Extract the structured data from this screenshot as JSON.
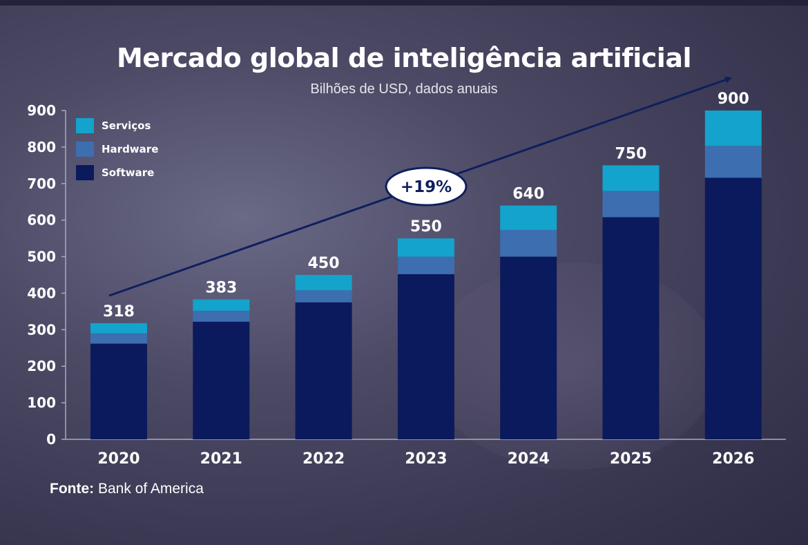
{
  "colors": {
    "services": "#13a3cc",
    "hardware": "#3d6eb0",
    "software": "#0b1a5c",
    "arrow": "#0f1f5e",
    "badge_bg": "#ffffff",
    "badge_text": "#0f1f5e"
  },
  "chart_data": {
    "type": "bar",
    "stacked": true,
    "title": "Mercado global de inteligência artificial",
    "subtitle": "Bilhões de USD, dados anuais",
    "categories": [
      "2020",
      "2021",
      "2022",
      "2023",
      "2024",
      "2025",
      "2026"
    ],
    "series": [
      {
        "name": "Software",
        "values": [
          262,
          322,
          375,
          452,
          500,
          608,
          716
        ]
      },
      {
        "name": "Hardware",
        "values": [
          28,
          30,
          33,
          48,
          73,
          72,
          87
        ]
      },
      {
        "name": "Serviços",
        "values": [
          28,
          31,
          42,
          50,
          67,
          70,
          97
        ]
      }
    ],
    "totals": [
      "318",
      "383",
      "450",
      "550",
      "640",
      "750",
      "900"
    ],
    "ylim": [
      0,
      900
    ],
    "yticks": [
      "0",
      "100",
      "200",
      "300",
      "400",
      "500",
      "600",
      "700",
      "800",
      "900"
    ],
    "legend": [
      "Serviços",
      "Hardware",
      "Software"
    ],
    "annotation": "+19%"
  },
  "source": {
    "label": "Fonte:",
    "text": " Bank of America"
  }
}
